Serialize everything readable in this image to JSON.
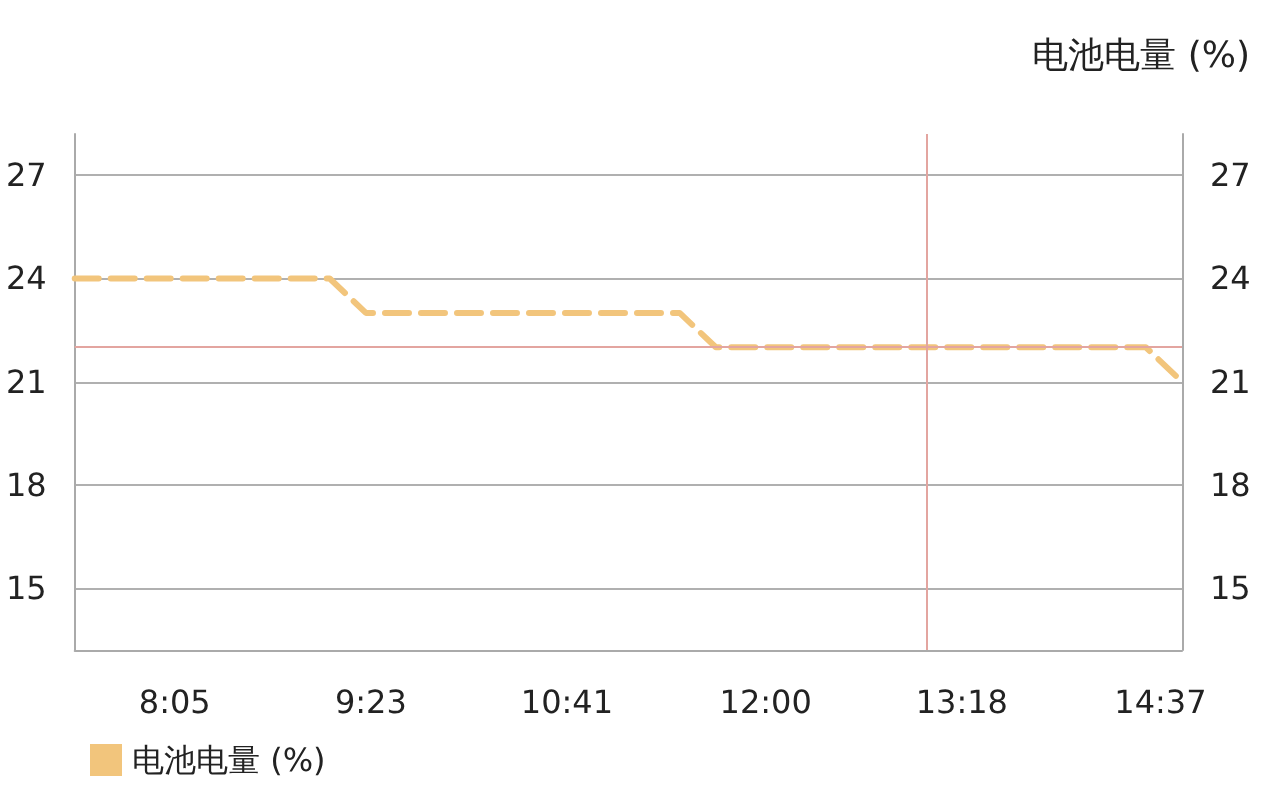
{
  "chart_data": {
    "type": "line",
    "title": "电池电量 (%)",
    "series": [
      {
        "name": "电池电量 (%)",
        "color": "#f2c57c",
        "x": [
          7.42,
          9.11,
          9.35,
          11.43,
          11.67,
          14.52,
          14.76
        ],
        "values": [
          24,
          24,
          23,
          23,
          22,
          22,
          21
        ]
      }
    ],
    "xlim": [
      7.42,
      14.76
    ],
    "xticks": [
      {
        "value": 8.083,
        "label": "8:05"
      },
      {
        "value": 9.383,
        "label": "9:23"
      },
      {
        "value": 10.683,
        "label": "10:41"
      },
      {
        "value": 12,
        "label": "12:00"
      },
      {
        "value": 13.3,
        "label": "13:18"
      },
      {
        "value": 14.617,
        "label": "14:37"
      }
    ],
    "ylim": [
      13.2,
      28.2
    ],
    "yticks": [
      15,
      18,
      21,
      24,
      27
    ],
    "y2lim": [
      13.2,
      28.2
    ],
    "y2ticks": [
      15,
      18,
      21,
      24,
      27
    ],
    "ref_lines": [
      {
        "axis": "y",
        "value": 22,
        "color": "#e3a5a0"
      },
      {
        "axis": "x",
        "value": 13.06,
        "color": "#e3a5a0"
      }
    ],
    "grid": "y",
    "legend": "bottom left",
    "marker": "none",
    "line_style": "dashed"
  }
}
